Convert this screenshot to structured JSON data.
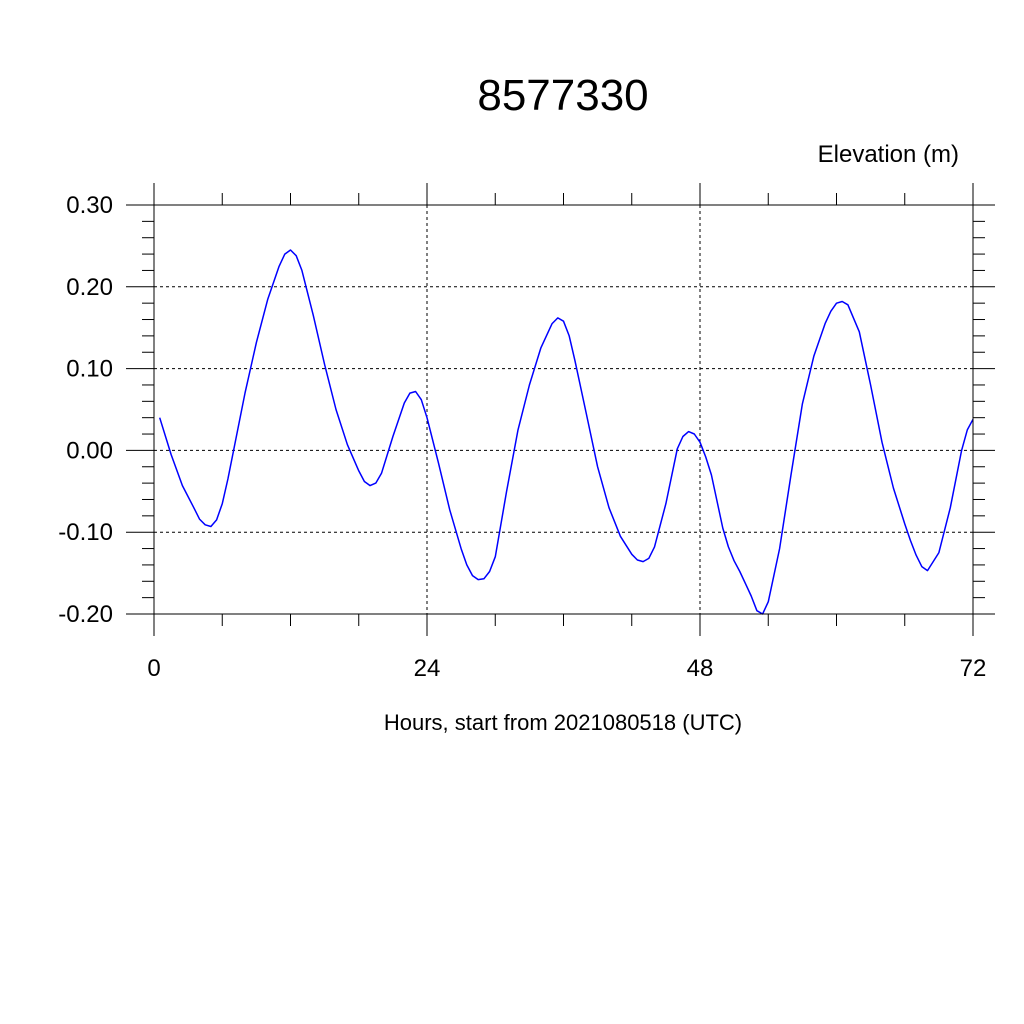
{
  "chart_data": {
    "type": "line",
    "title": "8577330",
    "ylabel": "Elevation (m)",
    "xlabel": "Hours, start from 2021080518 (UTC)",
    "xlim": [
      0,
      72
    ],
    "ylim": [
      -0.2,
      0.3
    ],
    "x_ticks": [
      0,
      24,
      48,
      72
    ],
    "x_tick_labels": [
      "0",
      "24",
      "48",
      "72"
    ],
    "y_ticks": [
      -0.2,
      -0.1,
      0.0,
      0.1,
      0.2,
      0.3
    ],
    "y_tick_labels": [
      "-0.20",
      "-0.10",
      "0.00",
      "0.10",
      "0.20",
      "0.30"
    ],
    "grid": true,
    "colors": {
      "series": "#0000ff",
      "axes": "#000000"
    },
    "series": [
      {
        "x": [
          0.5,
          1.5,
          2.5,
          3.5,
          4.0,
          4.5,
          5.0,
          5.5,
          6.0,
          6.5,
          7.0,
          8.0,
          9.0,
          10.0,
          11.0,
          11.5,
          12.0,
          12.5,
          13.0,
          14.0,
          15.0,
          16.0,
          17.0,
          18.0,
          18.5,
          19.0,
          19.5,
          20.0,
          21.0,
          22.0,
          22.5,
          23.0,
          23.5,
          24.0,
          25.0,
          26.0,
          27.0,
          27.5,
          28.0,
          28.5,
          29.0,
          29.5,
          30.0,
          31.0,
          32.0,
          33.0,
          34.0,
          35.0,
          35.5,
          36.0,
          36.5,
          37.0,
          38.0,
          39.0,
          40.0,
          41.0,
          42.0,
          42.5,
          43.0,
          43.5,
          44.0,
          45.0,
          46.0,
          46.5,
          47.0,
          47.5,
          48.0,
          48.5,
          49.0,
          50.0,
          50.5,
          51.0,
          51.5,
          52.0,
          52.5,
          53.0,
          53.5,
          54.0,
          55.0,
          56.0,
          57.0,
          58.0,
          59.0,
          59.5,
          60.0,
          60.5,
          61.0,
          62.0,
          63.0,
          64.0,
          65.0,
          66.0,
          66.5,
          67.0,
          67.5,
          68.0,
          69.0,
          70.0,
          71.0,
          71.5,
          72.0
        ],
        "values": [
          0.04,
          -0.005,
          -0.043,
          -0.07,
          -0.084,
          -0.091,
          -0.093,
          -0.085,
          -0.065,
          -0.035,
          0.0,
          0.07,
          0.132,
          0.185,
          0.225,
          0.24,
          0.245,
          0.238,
          0.22,
          0.165,
          0.105,
          0.05,
          0.007,
          -0.025,
          -0.038,
          -0.043,
          -0.04,
          -0.028,
          0.017,
          0.058,
          0.07,
          0.072,
          0.062,
          0.04,
          -0.015,
          -0.073,
          -0.12,
          -0.14,
          -0.153,
          -0.158,
          -0.157,
          -0.148,
          -0.13,
          -0.05,
          0.025,
          0.08,
          0.125,
          0.155,
          0.162,
          0.158,
          0.14,
          0.11,
          0.045,
          -0.02,
          -0.07,
          -0.105,
          -0.127,
          -0.134,
          -0.136,
          -0.132,
          -0.118,
          -0.065,
          0.002,
          0.017,
          0.023,
          0.02,
          0.01,
          -0.008,
          -0.03,
          -0.095,
          -0.118,
          -0.135,
          -0.148,
          -0.163,
          -0.178,
          -0.196,
          -0.2,
          -0.185,
          -0.12,
          -0.03,
          0.057,
          0.115,
          0.155,
          0.17,
          0.18,
          0.182,
          0.178,
          0.145,
          0.08,
          0.01,
          -0.046,
          -0.09,
          -0.11,
          -0.128,
          -0.142,
          -0.147,
          -0.125,
          -0.07,
          0.0,
          0.025,
          0.038
        ]
      }
    ]
  }
}
